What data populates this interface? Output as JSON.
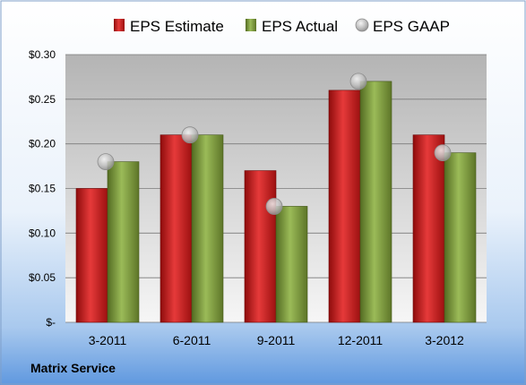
{
  "chart_data": {
    "type": "bar",
    "categories": [
      "3-2011",
      "6-2011",
      "9-2011",
      "12-2011",
      "3-2012"
    ],
    "series": [
      {
        "name": "EPS Estimate",
        "values": [
          0.15,
          0.21,
          0.17,
          0.26,
          0.21
        ],
        "color": "#cc1f1f",
        "kind": "bar"
      },
      {
        "name": "EPS Actual",
        "values": [
          0.18,
          0.21,
          0.13,
          0.27,
          0.19
        ],
        "color": "#7a9a3a",
        "kind": "bar"
      },
      {
        "name": "EPS GAAP",
        "values": [
          0.18,
          0.21,
          0.13,
          0.27,
          0.19
        ],
        "color": "#b0b0b0",
        "kind": "marker"
      }
    ],
    "y_ticks": [
      "$-",
      "$0.05",
      "$0.10",
      "$0.15",
      "$0.20",
      "$0.25",
      "$0.30"
    ],
    "ylim": [
      0,
      0.3
    ],
    "grid": true,
    "legend_position": "top",
    "footer_label": "Matrix Service"
  }
}
